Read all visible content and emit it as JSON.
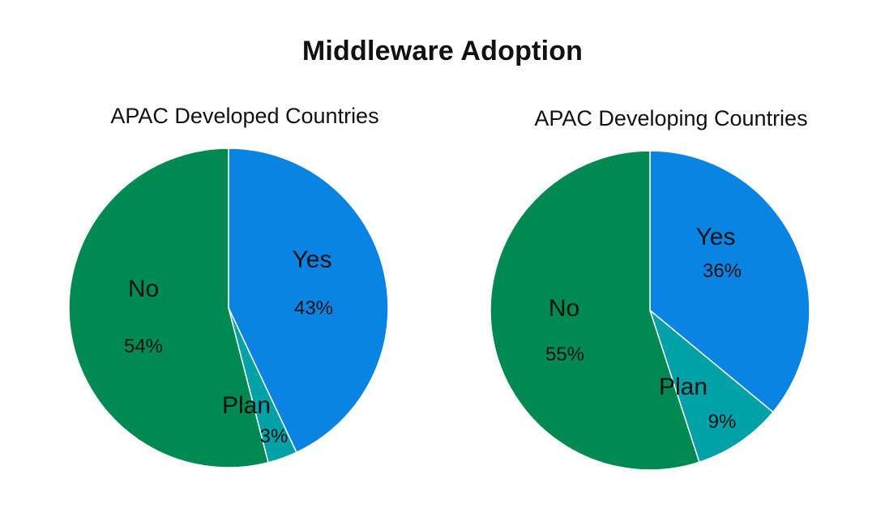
{
  "title": "Middleware Adoption",
  "chart_data": [
    {
      "type": "pie",
      "title": "APAC Developed Countries",
      "slices": [
        {
          "label": "Yes",
          "value": 43,
          "display": "43%",
          "color": "#0a84e2"
        },
        {
          "label": "Plan",
          "value": 3,
          "display": "3%",
          "color": "#00a1a7"
        },
        {
          "label": "No",
          "value": 54,
          "display": "54%",
          "color": "#008a52"
        }
      ],
      "start_angle": "12 o'clock",
      "direction": "clockwise"
    },
    {
      "type": "pie",
      "title": "APAC Developing Countries",
      "slices": [
        {
          "label": "Yes",
          "value": 36,
          "display": "36%",
          "color": "#0a84e2"
        },
        {
          "label": "Plan",
          "value": 9,
          "display": "9%",
          "color": "#00a1a7"
        },
        {
          "label": "No",
          "value": 55,
          "display": "55%",
          "color": "#008a52"
        }
      ],
      "start_angle": "12 o'clock",
      "direction": "clockwise"
    }
  ]
}
